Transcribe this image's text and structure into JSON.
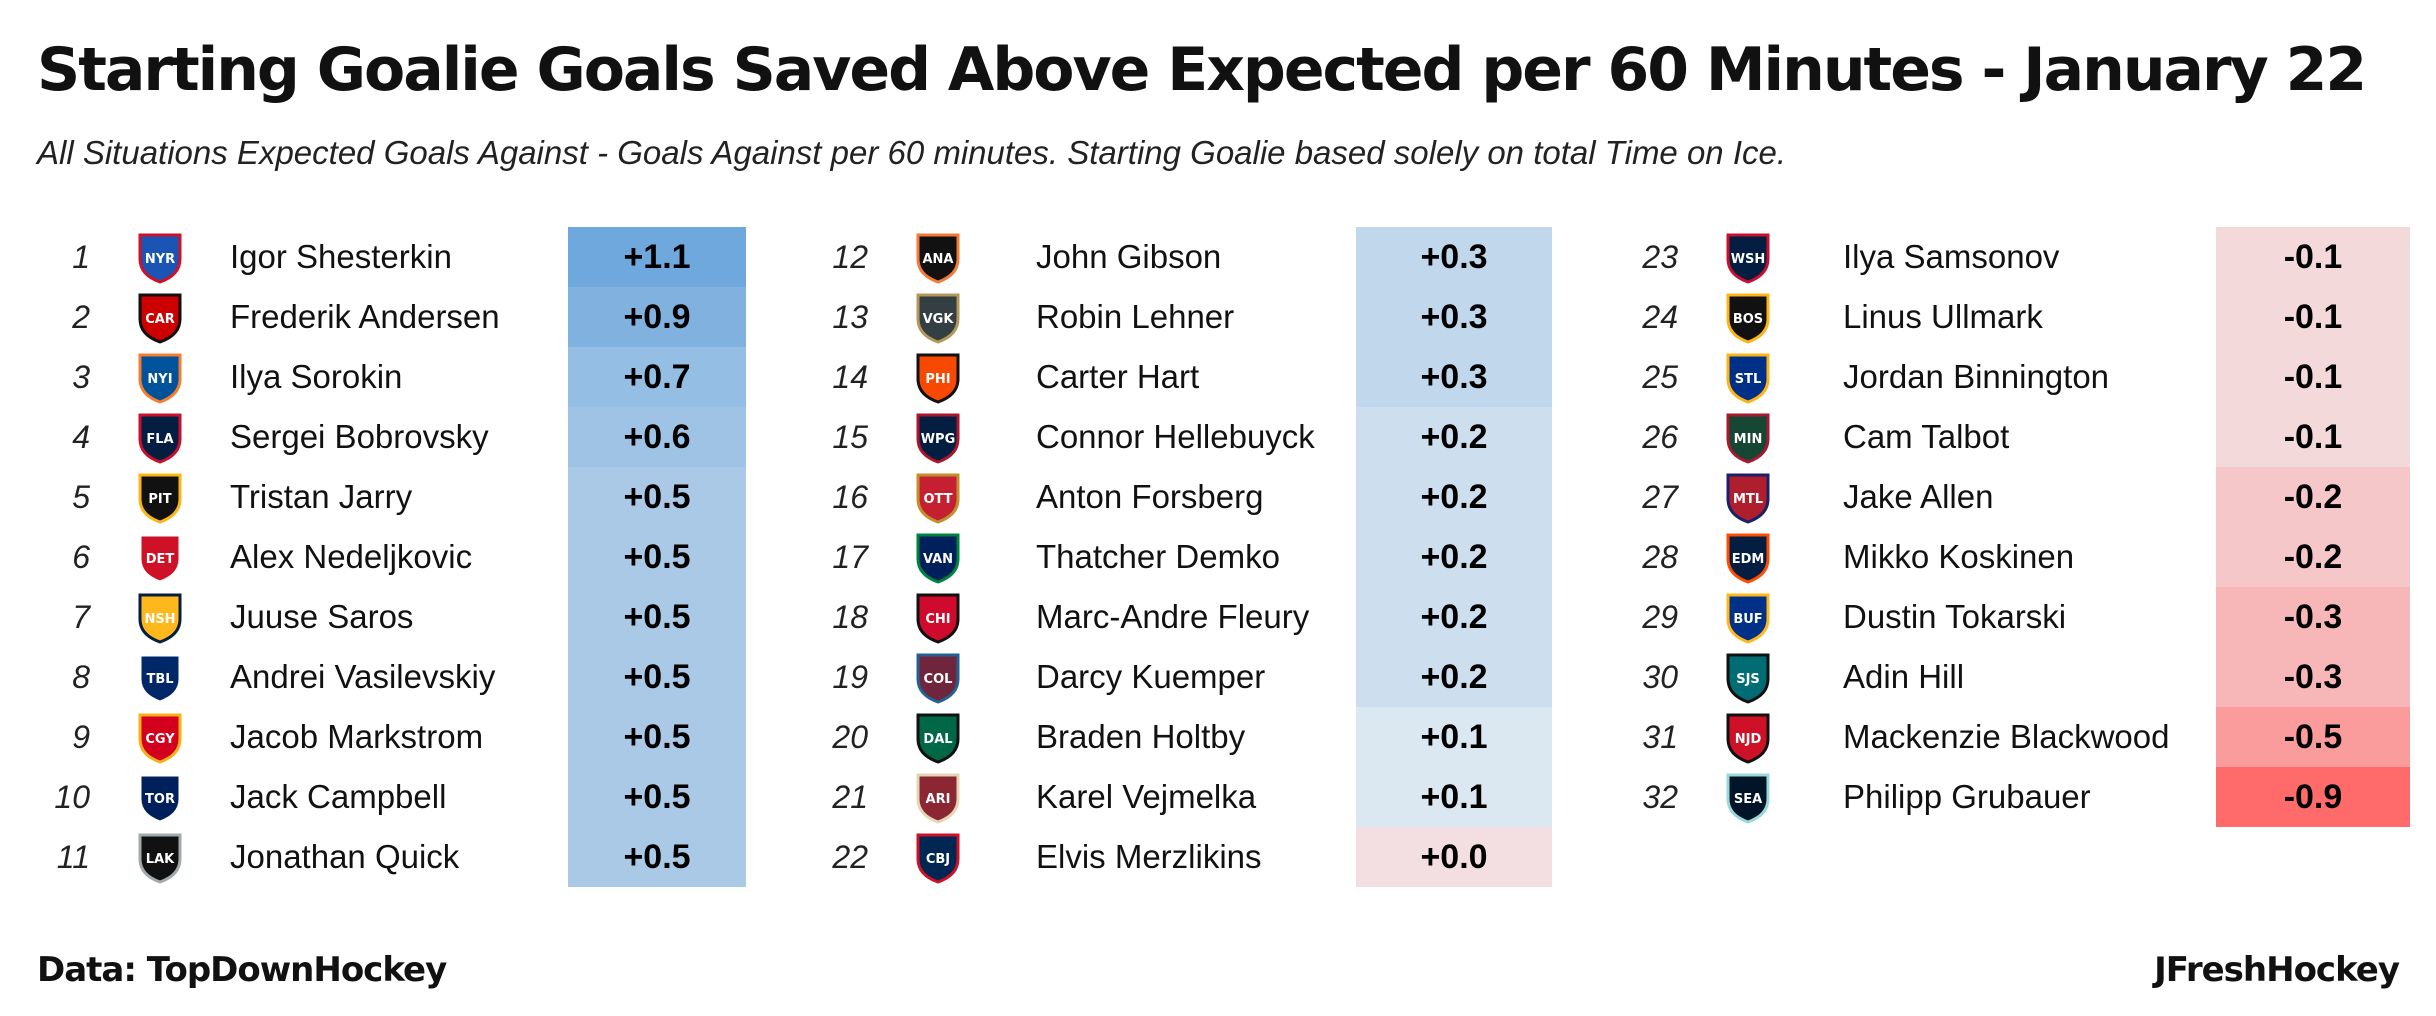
{
  "title": "Starting Goalie Goals Saved Above Expected per 60 Minutes - January 22",
  "subtitle": "All Situations Expected Goals Against - Goals Against per 60 minutes. Starting Goalie based solely on total Time on Ice.",
  "footer": {
    "source": "Data: TopDownHockey",
    "credit": "JFreshHockey"
  },
  "colors": {
    "positive": "#6fa8dc",
    "neutral": "#f1f3f5",
    "negative": "#ff6b6b"
  },
  "chart_data": {
    "type": "table",
    "columns": [
      "rank",
      "team_logo",
      "goalie",
      "gsax_per_60"
    ],
    "rows": [
      {
        "rank": "1",
        "team": "New York Rangers",
        "icon": "rangers-logo-icon",
        "color": "#1a55b4",
        "color2": "#ce1126",
        "abbr": "NYR",
        "goalie": "Igor Shesterkin",
        "label": "+1.1",
        "value": 1.1
      },
      {
        "rank": "2",
        "team": "Carolina Hurricanes",
        "icon": "hurricanes-logo-icon",
        "color": "#cc0000",
        "color2": "#111111",
        "abbr": "CAR",
        "goalie": "Frederik Andersen",
        "label": "+0.9",
        "value": 0.9
      },
      {
        "rank": "3",
        "team": "New York Islanders",
        "icon": "islanders-logo-icon",
        "color": "#00539b",
        "color2": "#f47d30",
        "abbr": "NYI",
        "goalie": "Ilya Sorokin",
        "label": "+0.7",
        "value": 0.7
      },
      {
        "rank": "4",
        "team": "Florida Panthers",
        "icon": "panthers-logo-icon",
        "color": "#041e42",
        "color2": "#c8102e",
        "abbr": "FLA",
        "goalie": "Sergei Bobrovsky",
        "label": "+0.6",
        "value": 0.6
      },
      {
        "rank": "5",
        "team": "Pittsburgh Penguins",
        "icon": "penguins-logo-icon",
        "color": "#111111",
        "color2": "#fcb514",
        "abbr": "PIT",
        "goalie": "Tristan Jarry",
        "label": "+0.5",
        "value": 0.5
      },
      {
        "rank": "6",
        "team": "Detroit Red Wings",
        "icon": "red-wings-logo-icon",
        "color": "#ce1126",
        "color2": "#ffffff",
        "abbr": "DET",
        "goalie": "Alex Nedeljkovic",
        "label": "+0.5",
        "value": 0.5
      },
      {
        "rank": "7",
        "team": "Nashville Predators",
        "icon": "predators-logo-icon",
        "color": "#ffb81c",
        "color2": "#041e42",
        "abbr": "NSH",
        "goalie": "Juuse Saros",
        "label": "+0.5",
        "value": 0.5
      },
      {
        "rank": "8",
        "team": "Tampa Bay Lightning",
        "icon": "lightning-logo-icon",
        "color": "#002868",
        "color2": "#ffffff",
        "abbr": "TBL",
        "goalie": "Andrei Vasilevskiy",
        "label": "+0.5",
        "value": 0.5
      },
      {
        "rank": "9",
        "team": "Calgary Flames",
        "icon": "flames-logo-icon",
        "color": "#d2001c",
        "color2": "#faaf19",
        "abbr": "CGY",
        "goalie": "Jacob Markstrom",
        "label": "+0.5",
        "value": 0.5
      },
      {
        "rank": "10",
        "team": "Toronto Maple Leafs",
        "icon": "maple-leafs-logo-icon",
        "color": "#00205b",
        "color2": "#ffffff",
        "abbr": "TOR",
        "goalie": "Jack Campbell",
        "label": "+0.5",
        "value": 0.5
      },
      {
        "rank": "11",
        "team": "Los Angeles Kings",
        "icon": "kings-logo-icon",
        "color": "#111111",
        "color2": "#a2aaad",
        "abbr": "LAK",
        "goalie": "Jonathan Quick",
        "label": "+0.5",
        "value": 0.5
      },
      {
        "rank": "12",
        "team": "Anaheim Ducks",
        "icon": "ducks-logo-icon",
        "color": "#111111",
        "color2": "#f47a38",
        "abbr": "ANA",
        "goalie": "John Gibson",
        "label": "+0.3",
        "value": 0.3
      },
      {
        "rank": "13",
        "team": "Vegas Golden Knights",
        "icon": "golden-knights-logo-icon",
        "color": "#333f42",
        "color2": "#b4975a",
        "abbr": "VGK",
        "goalie": "Robin Lehner",
        "label": "+0.3",
        "value": 0.3
      },
      {
        "rank": "14",
        "team": "Philadelphia Flyers",
        "icon": "flyers-logo-icon",
        "color": "#f74902",
        "color2": "#111111",
        "abbr": "PHI",
        "goalie": "Carter Hart",
        "label": "+0.3",
        "value": 0.3
      },
      {
        "rank": "15",
        "team": "Winnipeg Jets",
        "icon": "jets-logo-icon",
        "color": "#041e42",
        "color2": "#ac162c",
        "abbr": "WPG",
        "goalie": "Connor Hellebuyck",
        "label": "+0.2",
        "value": 0.2
      },
      {
        "rank": "16",
        "team": "Ottawa Senators",
        "icon": "senators-logo-icon",
        "color": "#c52032",
        "color2": "#c2912c",
        "abbr": "OTT",
        "goalie": "Anton Forsberg",
        "label": "+0.2",
        "value": 0.2
      },
      {
        "rank": "17",
        "team": "Vancouver Canucks",
        "icon": "canucks-logo-icon",
        "color": "#00205b",
        "color2": "#00843d",
        "abbr": "VAN",
        "goalie": "Thatcher Demko",
        "label": "+0.2",
        "value": 0.2
      },
      {
        "rank": "18",
        "team": "Chicago Blackhawks",
        "icon": "blackhawks-logo-icon",
        "color": "#cf0a2c",
        "color2": "#111111",
        "abbr": "CHI",
        "goalie": "Marc-Andre Fleury",
        "label": "+0.2",
        "value": 0.2
      },
      {
        "rank": "19",
        "team": "Colorado Avalanche",
        "icon": "avalanche-logo-icon",
        "color": "#6f263d",
        "color2": "#236192",
        "abbr": "COL",
        "goalie": "Darcy Kuemper",
        "label": "+0.2",
        "value": 0.2
      },
      {
        "rank": "20",
        "team": "Dallas Stars",
        "icon": "stars-logo-icon",
        "color": "#006847",
        "color2": "#111111",
        "abbr": "DAL",
        "goalie": "Braden Holtby",
        "label": "+0.1",
        "value": 0.1
      },
      {
        "rank": "21",
        "team": "Arizona Coyotes",
        "icon": "coyotes-logo-icon",
        "color": "#8c2633",
        "color2": "#e2d6b5",
        "abbr": "ARI",
        "goalie": "Karel Vejmelka",
        "label": "+0.1",
        "value": 0.1
      },
      {
        "rank": "22",
        "team": "Columbus Blue Jackets",
        "icon": "blue-jackets-logo-icon",
        "color": "#002654",
        "color2": "#ce1126",
        "abbr": "CBJ",
        "goalie": "Elvis Merzlikins",
        "label": "+0.0",
        "value": 0.0
      },
      {
        "rank": "23",
        "team": "Washington Capitals",
        "icon": "capitals-logo-icon",
        "color": "#041e42",
        "color2": "#c8102e",
        "abbr": "WSH",
        "goalie": "Ilya Samsonov",
        "label": "-0.1",
        "value": -0.1
      },
      {
        "rank": "24",
        "team": "Boston Bruins",
        "icon": "bruins-logo-icon",
        "color": "#111111",
        "color2": "#fcb514",
        "abbr": "BOS",
        "goalie": "Linus Ullmark",
        "label": "-0.1",
        "value": -0.1
      },
      {
        "rank": "25",
        "team": "St. Louis Blues",
        "icon": "blues-logo-icon",
        "color": "#002f87",
        "color2": "#fcb514",
        "abbr": "STL",
        "goalie": "Jordan Binnington",
        "label": "-0.1",
        "value": -0.1
      },
      {
        "rank": "26",
        "team": "Minnesota Wild",
        "icon": "wild-logo-icon",
        "color": "#154734",
        "color2": "#a6192e",
        "abbr": "MIN",
        "goalie": "Cam Talbot",
        "label": "-0.1",
        "value": -0.1
      },
      {
        "rank": "27",
        "team": "Montreal Canadiens",
        "icon": "canadiens-logo-icon",
        "color": "#af1e2d",
        "color2": "#192168",
        "abbr": "MTL",
        "goalie": "Jake Allen",
        "label": "-0.2",
        "value": -0.2
      },
      {
        "rank": "28",
        "team": "Edmonton Oilers",
        "icon": "oilers-logo-icon",
        "color": "#041e42",
        "color2": "#ff4c00",
        "abbr": "EDM",
        "goalie": "Mikko Koskinen",
        "label": "-0.2",
        "value": -0.2
      },
      {
        "rank": "29",
        "team": "Buffalo Sabres",
        "icon": "sabres-logo-icon",
        "color": "#003087",
        "color2": "#ffb81c",
        "abbr": "BUF",
        "goalie": "Dustin Tokarski",
        "label": "-0.3",
        "value": -0.3
      },
      {
        "rank": "30",
        "team": "San Jose Sharks",
        "icon": "sharks-logo-icon",
        "color": "#006d75",
        "color2": "#111111",
        "abbr": "SJS",
        "goalie": "Adin Hill",
        "label": "-0.3",
        "value": -0.3
      },
      {
        "rank": "31",
        "team": "New Jersey Devils",
        "icon": "devils-logo-icon",
        "color": "#ce1126",
        "color2": "#111111",
        "abbr": "NJD",
        "goalie": "Mackenzie Blackwood",
        "label": "-0.5",
        "value": -0.5
      },
      {
        "rank": "32",
        "team": "Seattle Kraken",
        "icon": "kraken-logo-icon",
        "color": "#001628",
        "color2": "#99d9d9",
        "abbr": "SEA",
        "goalie": "Philipp Grubauer",
        "label": "-0.9",
        "value": -0.9
      }
    ]
  }
}
